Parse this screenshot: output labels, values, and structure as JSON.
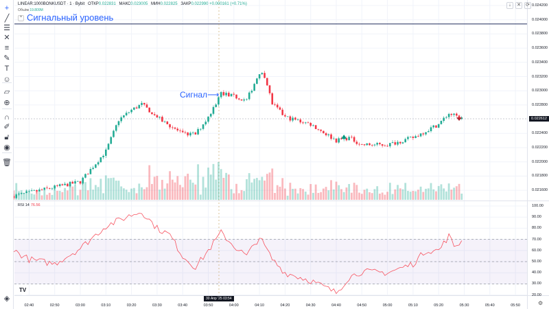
{
  "header": {
    "symbol": "LINEAR:1000BONKUSDT · 1 · Bybit",
    "open_label": "ОТКР",
    "open": "0.022831",
    "high_label": "МАКС",
    "high": "0.023005",
    "low_label": "МИН",
    "low": "0.022825",
    "close_label": "ЗАКР",
    "close": "0.022990",
    "change": "+0.000161 (+0.71%)",
    "volume_label": "Объём",
    "volume": "19.809M"
  },
  "drawings": {
    "signal_level": "Сигнальный уровень",
    "signal_level_price": 0.02394,
    "signal_text": "Сигнал"
  },
  "rsi": {
    "label": "RSI 14",
    "value": "76.56",
    "upper": 70,
    "middle": 50,
    "lower": 30
  },
  "price_axis": [
    "0.024200",
    "0.024000",
    "0.023800",
    "0.023600",
    "0.023400",
    "0.023200",
    "0.023000",
    "0.022800",
    "0.022400",
    "0.022200",
    "0.022000",
    "0.021800",
    "0.021600"
  ],
  "current_price": "0.022612",
  "rsi_axis": [
    "100.00",
    "90.00",
    "80.00",
    "70.00",
    "60.00",
    "50.00",
    "40.00",
    "30.00",
    "20.00"
  ],
  "time_axis": [
    "02:40",
    "02:50",
    "03:00",
    "03:10",
    "03:20",
    "03:30",
    "03:40",
    "03:50",
    "04:00",
    "04:10",
    "04:20",
    "04:30",
    "04:40",
    "04:50",
    "05:00",
    "05:10",
    "05:20",
    "05:30",
    "05:40",
    "05:50"
  ],
  "crosshair_time": "30 Апр '25   03:54",
  "colors": {
    "up": "#22ab94",
    "down": "#f23645",
    "rsi": "#f7525f",
    "band": "#7e57c2",
    "signal": "#2962ff"
  },
  "toolbar": [
    "crosshair-icon",
    "trend-line-icon",
    "fib-icon",
    "pattern-icon",
    "forecast-icon",
    "brush-icon",
    "text-icon",
    "emoji-icon",
    "ruler-icon",
    "zoom-in-icon",
    "magnet-icon",
    "lock-drawing-icon",
    "lock-icon",
    "eye-icon",
    "trash-icon"
  ],
  "chart_data": {
    "type": "candlestick",
    "interval": "1m",
    "price_keypoints": [
      [
        "02:34",
        0.02152
      ],
      [
        "03:00",
        0.02172
      ],
      [
        "03:10",
        0.02215
      ],
      [
        "03:15",
        0.02259
      ],
      [
        "03:20",
        0.02273
      ],
      [
        "03:24",
        0.02281
      ],
      [
        "03:30",
        0.02263
      ],
      [
        "03:40",
        0.02239
      ],
      [
        "03:45",
        0.02239
      ],
      [
        "03:50",
        0.02263
      ],
      [
        "03:55",
        0.02297
      ],
      [
        "04:00",
        0.02292
      ],
      [
        "04:05",
        0.02287
      ],
      [
        "04:10",
        0.02326
      ],
      [
        "04:12",
        0.02321
      ],
      [
        "04:15",
        0.02282
      ],
      [
        "04:20",
        0.02263
      ],
      [
        "04:30",
        0.02253
      ],
      [
        "04:40",
        0.0223
      ],
      [
        "04:45",
        0.02234
      ],
      [
        "04:50",
        0.02224
      ],
      [
        "05:00",
        0.02224
      ],
      [
        "05:10",
        0.02234
      ],
      [
        "05:20",
        0.02253
      ],
      [
        "05:24",
        0.02268
      ],
      [
        "05:29",
        0.02261
      ]
    ],
    "rsi_keypoints": [
      [
        "02:34",
        60
      ],
      [
        "02:40",
        52
      ],
      [
        "02:50",
        48
      ],
      [
        "03:00",
        62
      ],
      [
        "03:10",
        82
      ],
      [
        "03:20",
        92
      ],
      [
        "03:24",
        95
      ],
      [
        "03:30",
        80
      ],
      [
        "03:35",
        74
      ],
      [
        "03:40",
        55
      ],
      [
        "03:45",
        45
      ],
      [
        "03:50",
        60
      ],
      [
        "03:55",
        76
      ],
      [
        "04:00",
        64
      ],
      [
        "04:05",
        55
      ],
      [
        "04:10",
        72
      ],
      [
        "04:15",
        52
      ],
      [
        "04:20",
        40
      ],
      [
        "04:30",
        33
      ],
      [
        "04:40",
        22
      ],
      [
        "04:45",
        36
      ],
      [
        "04:50",
        41
      ],
      [
        "05:00",
        40
      ],
      [
        "05:10",
        48
      ],
      [
        "05:15",
        60
      ],
      [
        "05:20",
        60
      ],
      [
        "05:24",
        73
      ],
      [
        "05:26",
        64
      ],
      [
        "05:29",
        68
      ]
    ],
    "markers": [
      {
        "time": "04:43",
        "type": "buy"
      },
      {
        "time": "05:28",
        "type": "sell"
      }
    ]
  }
}
